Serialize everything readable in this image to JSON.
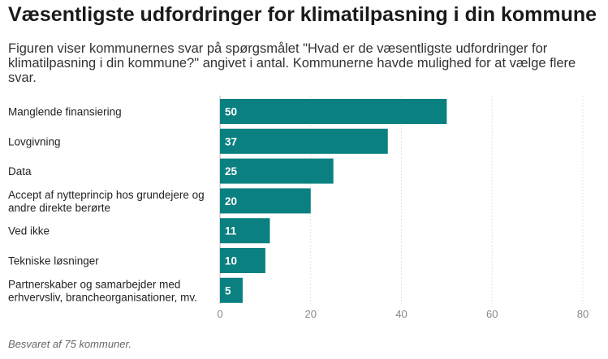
{
  "chart_data": {
    "type": "bar",
    "orientation": "horizontal",
    "title": "Væsentligste udfordringer for klimatilpasning i din kommune",
    "subtitle": "Figuren viser kommunernes svar på spørgsmålet \"Hvad er de væsentligste udfordringer for klimatilpasning i din kommune?\" angivet i antal. Kommunerne havde mulighed for at vælge flere svar.",
    "categories": [
      [
        "Manglende finansiering"
      ],
      [
        "Lovgivning"
      ],
      [
        "Data"
      ],
      [
        "Accept af nytteprincip hos grundejere og",
        "andre direkte berørte"
      ],
      [
        "Ved ikke"
      ],
      [
        "Tekniske løsninger"
      ],
      [
        "Partnerskaber og samarbejder med",
        "erhvervsliv, brancheorganisationer, mv."
      ]
    ],
    "values": [
      50,
      37,
      25,
      20,
      11,
      10,
      5
    ],
    "xlim": [
      0,
      80
    ],
    "xticks": [
      0,
      20,
      40,
      60,
      80
    ],
    "xlabel": "",
    "ylabel": "",
    "grid": true,
    "bar_color": "#0a8080",
    "footnote": "Besvaret af 75 kommuner."
  }
}
